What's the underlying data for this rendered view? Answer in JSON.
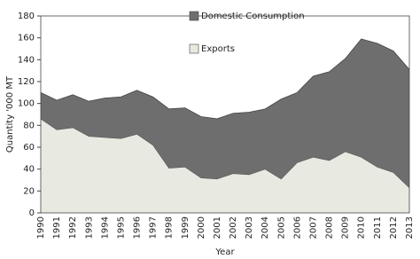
{
  "chart_data": {
    "type": "stacked_area",
    "categories": [
      1990,
      1991,
      1992,
      1993,
      1994,
      1995,
      1996,
      1997,
      1998,
      1999,
      2000,
      2001,
      2002,
      2003,
      2004,
      2005,
      2006,
      2007,
      2008,
      2009,
      2010,
      2011,
      2012,
      2013
    ],
    "series": [
      {
        "name": "Exports",
        "color": "#e8eae2",
        "values": [
          86,
          76,
          78,
          70,
          69,
          68,
          72,
          62,
          41,
          42,
          32,
          31,
          36,
          35,
          40,
          31,
          46,
          51,
          48,
          56,
          51,
          42,
          37,
          23
        ]
      },
      {
        "name": "Domestic Consumption",
        "color": "#6e6e6e",
        "values": [
          24,
          27,
          30,
          32,
          36,
          38,
          40,
          44,
          54,
          54,
          56,
          55,
          55,
          57,
          55,
          73,
          64,
          74,
          81,
          85,
          108,
          113,
          111,
          108
        ]
      }
    ],
    "x_label": "Year",
    "y_label": "Quantity '000 MT",
    "ylim": [
      0,
      180
    ],
    "yticks": [
      0,
      20,
      40,
      60,
      80,
      100,
      120,
      140,
      160,
      180
    ],
    "grid": false,
    "legend": "upper center"
  }
}
